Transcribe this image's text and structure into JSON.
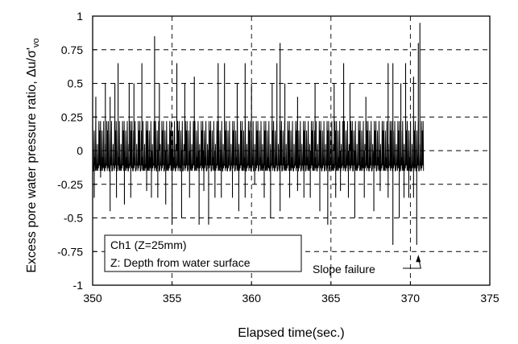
{
  "chart_data": {
    "type": "line",
    "title": "",
    "xlabel": "Elapsed time(sec.)",
    "ylabel": "Excess pore water pressure ratio, Δu/σ'",
    "ylabel_subscript": "vo",
    "xlim": [
      350,
      375
    ],
    "ylim": [
      -1,
      1
    ],
    "x_ticks": [
      350,
      355,
      360,
      365,
      370,
      375
    ],
    "y_ticks": [
      -1,
      -0.75,
      -0.5,
      -0.25,
      0,
      0.25,
      0.5,
      0.75,
      1
    ],
    "x_tick_labels": [
      "350",
      "355",
      "360",
      "365",
      "370",
      "375"
    ],
    "y_tick_labels": [
      "-1",
      "-0.75",
      "-0.5",
      "-0.25",
      "0",
      "0.25",
      "0.5",
      "0.75",
      "1"
    ],
    "grid": true,
    "grid_style": "dashed",
    "series": [
      {
        "color": "#000000",
        "x_range": [
          350,
          370.8
        ],
        "baseline_band": [
          -0.15,
          0.22
        ],
        "upper_spikes": [
          [
            350.2,
            0.4
          ],
          [
            350.8,
            0.5
          ],
          [
            351.1,
            0.4
          ],
          [
            351.4,
            0.5
          ],
          [
            351.6,
            0.65
          ],
          [
            352.3,
            0.5
          ],
          [
            352.6,
            0.5
          ],
          [
            353.1,
            0.65
          ],
          [
            353.9,
            0.85
          ],
          [
            354.2,
            0.5
          ],
          [
            355.3,
            0.65
          ],
          [
            355.8,
            0.5
          ],
          [
            356.4,
            0.55
          ],
          [
            357.9,
            0.65
          ],
          [
            358.3,
            0.65
          ],
          [
            359.1,
            0.5
          ],
          [
            359.6,
            0.65
          ],
          [
            360.0,
            0.5
          ],
          [
            361.3,
            0.5
          ],
          [
            361.6,
            0.65
          ],
          [
            361.8,
            0.8
          ],
          [
            362.1,
            0.5
          ],
          [
            362.9,
            0.4
          ],
          [
            364.0,
            0.5
          ],
          [
            365.2,
            0.5
          ],
          [
            365.8,
            0.65
          ],
          [
            366.2,
            0.5
          ],
          [
            367.2,
            0.4
          ],
          [
            368.6,
            0.65
          ],
          [
            368.9,
            0.65
          ],
          [
            369.4,
            0.5
          ],
          [
            369.7,
            0.65
          ],
          [
            370.2,
            0.55
          ],
          [
            370.5,
            0.8
          ],
          [
            370.6,
            0.95
          ]
        ],
        "lower_spikes": [
          [
            350.1,
            -0.35
          ],
          [
            350.5,
            -0.2
          ],
          [
            351.1,
            -0.45
          ],
          [
            351.5,
            -0.35
          ],
          [
            352.0,
            -0.4
          ],
          [
            352.4,
            -0.35
          ],
          [
            353.4,
            -0.3
          ],
          [
            353.7,
            -0.35
          ],
          [
            354.1,
            -0.35
          ],
          [
            354.6,
            -0.4
          ],
          [
            355.0,
            -0.55
          ],
          [
            355.6,
            -0.5
          ],
          [
            356.1,
            -0.35
          ],
          [
            356.7,
            -0.55
          ],
          [
            357.0,
            -0.3
          ],
          [
            357.3,
            -0.55
          ],
          [
            357.7,
            -0.35
          ],
          [
            358.1,
            -0.35
          ],
          [
            358.8,
            -0.35
          ],
          [
            359.2,
            -0.45
          ],
          [
            359.6,
            -0.35
          ],
          [
            360.2,
            -0.25
          ],
          [
            360.8,
            -0.35
          ],
          [
            361.2,
            -0.5
          ],
          [
            361.8,
            -0.45
          ],
          [
            362.4,
            -0.35
          ],
          [
            362.9,
            -0.3
          ],
          [
            363.3,
            -0.35
          ],
          [
            363.7,
            -0.35
          ],
          [
            364.3,
            -0.45
          ],
          [
            364.8,
            -0.55
          ],
          [
            365.3,
            -0.35
          ],
          [
            365.6,
            -0.3
          ],
          [
            366.1,
            -0.35
          ],
          [
            366.5,
            -0.5
          ],
          [
            367.1,
            -0.35
          ],
          [
            367.7,
            -0.45
          ],
          [
            368.1,
            -0.3
          ],
          [
            368.6,
            -0.35
          ],
          [
            368.9,
            -0.7
          ],
          [
            369.3,
            -0.5
          ],
          [
            369.6,
            -0.35
          ],
          [
            369.9,
            -0.35
          ],
          [
            370.2,
            -0.35
          ],
          [
            370.4,
            -0.7
          ]
        ]
      }
    ],
    "annotations": {
      "legend_box_line1": "Ch1 (Z=25mm)",
      "legend_box_line2": "Z: Depth from water surface",
      "callout_label": "Slope failure",
      "callout_x": 370.5
    }
  }
}
